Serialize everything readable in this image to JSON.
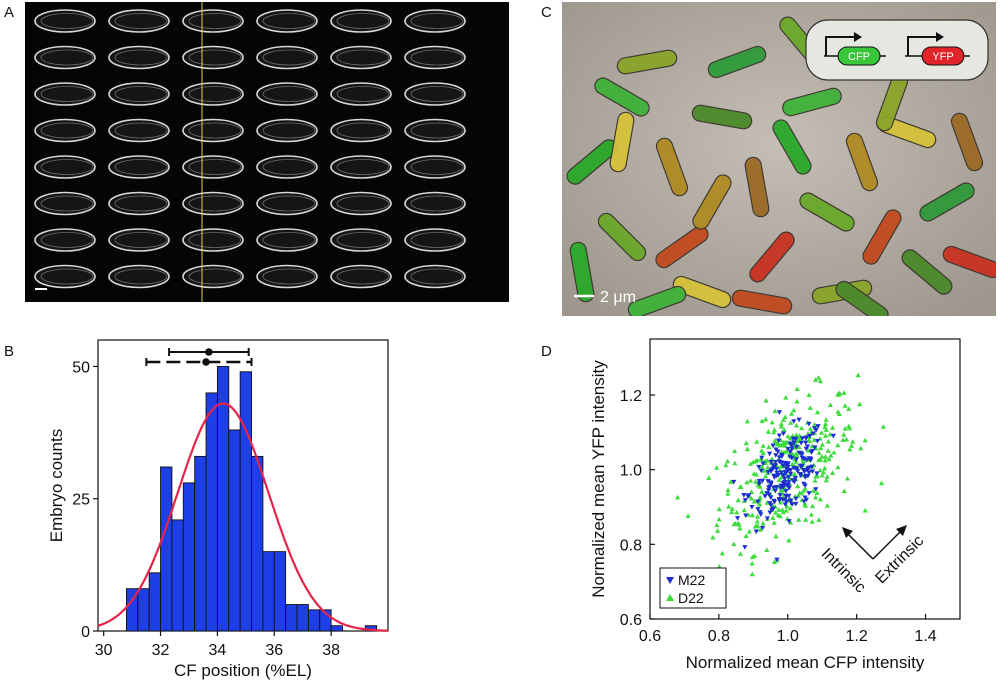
{
  "panel_labels": {
    "a": "A",
    "b": "B",
    "c": "C",
    "d": "D"
  },
  "panel_c": {
    "scale_label": "2 μm",
    "gene_1": "CFP",
    "gene_2": "YFP",
    "colors": {
      "cfp": "#2ecc2e",
      "yfp": "#e0242a",
      "bg": "#b7b0a6"
    }
  },
  "chart_data": [
    {
      "panel": "B",
      "type": "bar",
      "title": "",
      "xlabel": "CF position (%EL)",
      "ylabel": "Embryo counts",
      "xlim": [
        29.8,
        40.0
      ],
      "ylim": [
        0,
        55
      ],
      "xticks": [
        30,
        32,
        34,
        36,
        38
      ],
      "yticks": [
        0,
        25,
        50
      ],
      "bin_edges": [
        30.8,
        31.2,
        31.6,
        32.0,
        32.4,
        32.8,
        33.2,
        33.6,
        34.0,
        34.4,
        34.8,
        35.2,
        35.6,
        36.0,
        36.4,
        36.8,
        37.2,
        37.6,
        38.0,
        38.4,
        38.8,
        39.2,
        39.6
      ],
      "values": [
        8,
        8,
        11,
        31,
        21,
        28,
        33,
        45,
        50,
        38,
        49,
        33,
        15,
        15,
        5,
        5,
        4,
        4,
        1,
        0,
        0,
        1
      ],
      "fit": {
        "type": "gaussian",
        "mean": 34.2,
        "sd": 1.6,
        "peak": 43,
        "color": "#e8234a"
      },
      "error_bars": [
        {
          "center": 33.7,
          "low": 32.3,
          "high": 35.1
        },
        {
          "center": 33.6,
          "low": 31.5,
          "high": 35.2
        }
      ],
      "bar_color": "#1f3fe6"
    },
    {
      "panel": "D",
      "type": "scatter",
      "title": "",
      "xlabel": "Normalized mean CFP intensity",
      "ylabel": "Normalized mean YFP intensity",
      "xlim": [
        0.6,
        1.5
      ],
      "ylim": [
        0.6,
        1.35
      ],
      "xticks": [
        "0.6",
        "0.8",
        "1.0",
        "1.2",
        "1.4"
      ],
      "yticks": [
        "0.6",
        "0.8",
        "1.0",
        "1.2"
      ],
      "legend": {
        "position": "bottom-left",
        "entries": [
          "M22",
          "D22"
        ]
      },
      "annotations": [
        "Intrinsic",
        "Extrinsic"
      ],
      "series": [
        {
          "name": "M22",
          "marker": "triangle-down",
          "color": "#1d2fcf",
          "count": 200,
          "mean_x": 1.0,
          "mean_y": 0.99,
          "sd_x": 0.055,
          "sd_y": 0.06,
          "corr": 0.45
        },
        {
          "name": "D22",
          "marker": "triangle-up",
          "color": "#3ddc3d",
          "count": 330,
          "mean_x": 1.0,
          "mean_y": 1.0,
          "sd_x": 0.1,
          "sd_y": 0.1,
          "corr": 0.5
        }
      ]
    }
  ]
}
